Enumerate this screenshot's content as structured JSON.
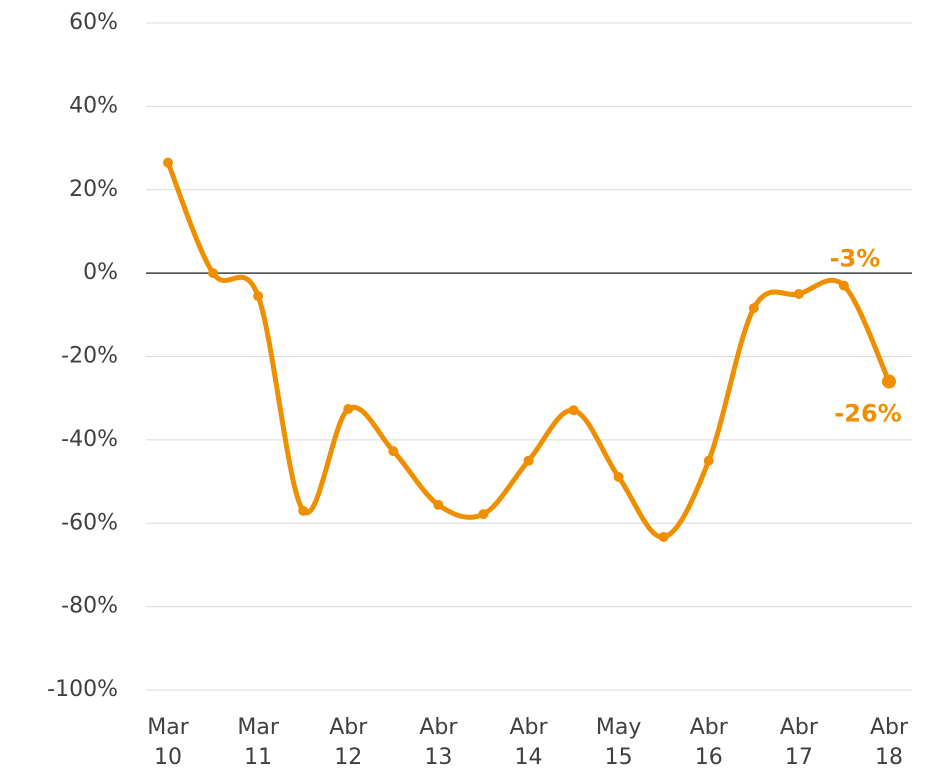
{
  "chart_data": {
    "type": "line",
    "categories": [
      "Mar\n10",
      null,
      "Mar\n11",
      null,
      "Abr\n12",
      null,
      "Abr\n13",
      null,
      "Abr\n14",
      null,
      "May\n15",
      null,
      "Abr\n16",
      null,
      "Abr\n17",
      null,
      "Abr\n18"
    ],
    "series": [
      {
        "name": null,
        "color": "#ef8f00",
        "values": [
          26.5,
          0,
          -5.5,
          -57,
          -32.6,
          -42.7,
          -55.6,
          -57.8,
          -45,
          -32.9,
          -48.9,
          -63.3,
          -45,
          -8.4,
          -5,
          -3,
          -26
        ],
        "value_labels": [
          null,
          null,
          null,
          null,
          null,
          null,
          null,
          null,
          null,
          null,
          null,
          null,
          null,
          null,
          null,
          "-3%",
          "-26%"
        ]
      }
    ],
    "ylim": [
      -100,
      60
    ],
    "yticks": [
      {
        "value": -100,
        "label": "-100%"
      },
      {
        "value": -80,
        "label": "-80%"
      },
      {
        "value": -60,
        "label": "-60%"
      },
      {
        "value": -40,
        "label": "-40%"
      },
      {
        "value": -20,
        "label": "-20%"
      },
      {
        "value": 0,
        "label": "0%"
      },
      {
        "value": 20,
        "label": "20%"
      },
      {
        "value": 40,
        "label": "40%"
      },
      {
        "value": 60,
        "label": "60%"
      }
    ],
    "grid": true
  }
}
